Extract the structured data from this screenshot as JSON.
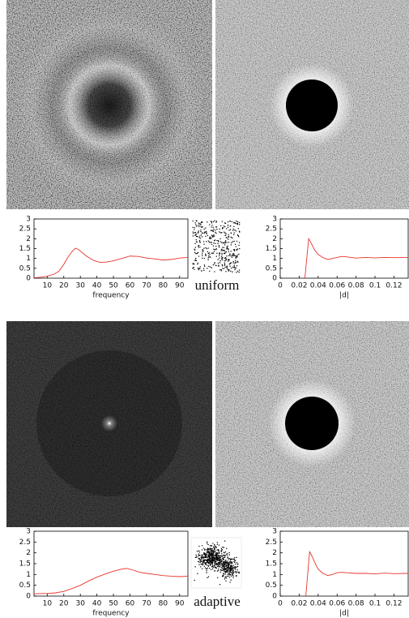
{
  "captions": [
    "uniform",
    "adaptive"
  ],
  "chart_data": [
    {
      "type": "line",
      "xlabel": "frequency",
      "x": [
        2,
        6,
        10,
        14,
        17,
        20,
        22,
        25,
        27,
        29,
        31,
        34,
        38,
        42,
        46,
        50,
        55,
        60,
        65,
        70,
        75,
        80,
        85,
        90,
        95
      ],
      "series": [
        {
          "color": "#e8342c",
          "values": [
            0.02,
            0.05,
            0.1,
            0.2,
            0.35,
            0.7,
            1.0,
            1.35,
            1.52,
            1.45,
            1.3,
            1.1,
            0.9,
            0.8,
            0.82,
            0.88,
            1.0,
            1.12,
            1.1,
            1.02,
            0.98,
            0.92,
            0.95,
            1.02,
            1.05
          ]
        }
      ],
      "xlim": [
        2,
        95
      ],
      "ylim": [
        0,
        3
      ],
      "xticks": [
        10,
        20,
        30,
        40,
        50,
        60,
        70,
        80,
        90
      ],
      "yticks": [
        0,
        0.5,
        1,
        1.5,
        2,
        2.5,
        3
      ]
    },
    {
      "type": "line",
      "xlabel": "|d|",
      "x": [
        0.026,
        0.03,
        0.033,
        0.036,
        0.04,
        0.045,
        0.05,
        0.055,
        0.06,
        0.065,
        0.07,
        0.08,
        0.09,
        0.1,
        0.11,
        0.12,
        0.135
      ],
      "series": [
        {
          "color": "#e8342c",
          "values": [
            0,
            2.0,
            1.75,
            1.45,
            1.2,
            1.05,
            0.95,
            1.0,
            1.05,
            1.1,
            1.08,
            1.02,
            1.05,
            1.03,
            1.05,
            1.04,
            1.05
          ]
        }
      ],
      "xlim": [
        0,
        0.135
      ],
      "ylim": [
        0,
        3
      ],
      "xticks": [
        0,
        0.02,
        0.04,
        0.06,
        0.08,
        0.1,
        0.12
      ],
      "yticks": [
        0,
        0.5,
        1,
        1.5,
        2,
        2.5,
        3
      ]
    },
    {
      "type": "line",
      "xlabel": "frequency",
      "x": [
        2,
        6,
        10,
        15,
        20,
        25,
        30,
        35,
        40,
        45,
        50,
        55,
        58,
        62,
        66,
        70,
        75,
        80,
        85,
        90,
        95
      ],
      "series": [
        {
          "color": "#e8342c",
          "values": [
            0.1,
            0.12,
            0.12,
            0.15,
            0.22,
            0.35,
            0.5,
            0.7,
            0.88,
            1.02,
            1.15,
            1.25,
            1.28,
            1.2,
            1.1,
            1.05,
            1.0,
            0.95,
            0.92,
            0.9,
            0.92
          ]
        }
      ],
      "xlim": [
        2,
        95
      ],
      "ylim": [
        0,
        3
      ],
      "xticks": [
        10,
        20,
        30,
        40,
        50,
        60,
        70,
        80,
        90
      ],
      "yticks": [
        0,
        0.5,
        1,
        1.5,
        2,
        2.5,
        3
      ]
    },
    {
      "type": "line",
      "xlabel": "|d|",
      "x": [
        0.027,
        0.031,
        0.034,
        0.037,
        0.04,
        0.045,
        0.05,
        0.055,
        0.06,
        0.065,
        0.07,
        0.08,
        0.09,
        0.1,
        0.11,
        0.12,
        0.135
      ],
      "series": [
        {
          "color": "#e8342c",
          "values": [
            0,
            2.05,
            1.8,
            1.5,
            1.25,
            1.05,
            0.95,
            1.0,
            1.08,
            1.1,
            1.08,
            1.05,
            1.05,
            1.03,
            1.06,
            1.04,
            1.05
          ]
        }
      ],
      "xlim": [
        0,
        0.135
      ],
      "ylim": [
        0,
        3
      ],
      "xticks": [
        0,
        0.02,
        0.04,
        0.06,
        0.08,
        0.1,
        0.12
      ],
      "yticks": [
        0,
        0.5,
        1,
        1.5,
        2,
        2.5,
        3
      ]
    }
  ]
}
